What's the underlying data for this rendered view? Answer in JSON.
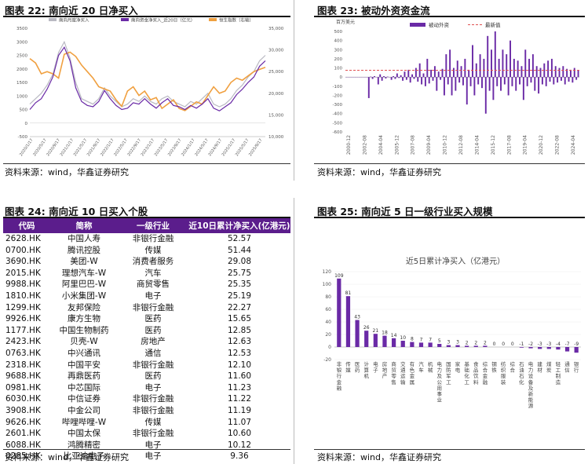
{
  "panels": {
    "p22": {
      "title": "图表 22: 南向近 20 日净买入",
      "source": "资料来源：wind，华鑫证券研究"
    },
    "p23": {
      "title": "图表 23: 被动外资资金流",
      "source": "资料来源：wind，华鑫证券研究"
    },
    "p24": {
      "title": "图表 24: 南向近 10 日买入个股",
      "source": "资料来源：wind，华鑫证券研究"
    },
    "p25": {
      "title": "图表 25: 南向近 5 日一级行业买入规模",
      "source": "资料来源：wind，华鑫证券研究"
    }
  },
  "colors": {
    "header_purple": "#5b1d8c",
    "series_gray": "#b9b9c2",
    "series_purple": "#6a2aa6",
    "series_orange": "#f0a040",
    "bar_purple": "#6a2aa6",
    "latest_red": "#e05050"
  },
  "chart_data": [
    {
      "id": "southbound_20d",
      "type": "line",
      "legend": [
        "南向月度净买入",
        "南向资金净买入_近20日（亿元）",
        "恒生指数（右轴）"
      ],
      "y_left": {
        "ylim": [
          -500,
          3500
        ],
        "ticks": [
          "3500",
          "3000",
          "2500",
          "2000",
          "1500",
          "1000",
          "500",
          "0",
          "-500"
        ]
      },
      "y_right": {
        "ylim": [
          10000,
          35000
        ],
        "ticks": [
          "35,000",
          "30,000",
          "25,000",
          "20,000",
          "15,000",
          "10,000"
        ]
      },
      "x_ticks": [
        "2020/1/17",
        "2020/5/17",
        "2020/9/17",
        "2021/1/17",
        "2021/5/17",
        "2021/9/17",
        "2022/1/17",
        "2022/5/17",
        "2022/9/17",
        "2023/1/17",
        "2023/5/17",
        "2023/9/17",
        "2024/1/17",
        "2024/5/17",
        "2024/9/17",
        "2025/1/17",
        "2025/5/17",
        "2025/9/17"
      ],
      "series": [
        {
          "name": "南向月度净买入",
          "values": [
            700,
            900,
            1100,
            1400,
            1800,
            2600,
            3000,
            2400,
            1500,
            900,
            800,
            700,
            900,
            1300,
            1000,
            800,
            600,
            700,
            900,
            800,
            1000,
            800,
            700,
            900,
            1000,
            800,
            700,
            600,
            800,
            700,
            900,
            1100,
            700,
            600,
            700,
            900,
            1200,
            1400,
            1700,
            1900,
            2300,
            2500
          ]
        },
        {
          "name": "南向资金净买入_近20日（亿元）",
          "values": [
            500,
            750,
            900,
            1250,
            1700,
            2500,
            2800,
            2300,
            1300,
            800,
            650,
            600,
            800,
            1200,
            900,
            650,
            500,
            550,
            750,
            700,
            900,
            700,
            550,
            750,
            900,
            650,
            600,
            500,
            650,
            550,
            700,
            900,
            550,
            450,
            600,
            750,
            1050,
            1250,
            1500,
            1700,
            2100,
            2300
          ]
        },
        {
          "name": "恒生指数（右轴）",
          "values": [
            28000,
            27000,
            24500,
            25000,
            24500,
            23500,
            29000,
            29500,
            28500,
            26500,
            25000,
            23500,
            21500,
            21000,
            20500,
            18500,
            17000,
            20500,
            21500,
            19500,
            20500,
            18500,
            19000,
            16500,
            17500,
            18500,
            16500,
            16000,
            17000,
            18000,
            17500,
            19500,
            21500,
            20000,
            20500,
            22500,
            23500,
            23000,
            24000,
            25000,
            25500,
            26000
          ]
        }
      ]
    },
    {
      "id": "passive_foreign_flow",
      "type": "bar",
      "unit": "百万美元",
      "legend": [
        "被动外资",
        "最新值"
      ],
      "ylim": [
        -600,
        500
      ],
      "y_ticks": [
        "500",
        "400",
        "300",
        "200",
        "100",
        "0",
        "-100",
        "-200",
        "-300",
        "-400",
        "-500",
        "-600"
      ],
      "x_ticks": [
        "2000-12",
        "2002-08",
        "2004-04",
        "2005-12",
        "2007-08",
        "2009-04",
        "2010-12",
        "2012-08",
        "2014-04",
        "2015-12",
        "2017-08",
        "2019-04",
        "2020-12",
        "2022-08",
        "2024-04"
      ],
      "latest_value": 75,
      "values": [
        0,
        0,
        0,
        0,
        0,
        0,
        0,
        0,
        0,
        0,
        0,
        0,
        -230,
        5,
        -20,
        10,
        0,
        -80,
        30,
        -40,
        10,
        -15,
        5,
        0,
        -30,
        10,
        -20,
        40,
        -10,
        20,
        -40,
        60,
        -30,
        80,
        -60,
        30,
        -20,
        100,
        -50,
        150,
        -80,
        40,
        -100,
        200,
        -70,
        80,
        -40,
        120,
        -150,
        60,
        -30,
        90,
        -200,
        250,
        -80,
        300,
        -200,
        100,
        -150,
        180,
        -60,
        120,
        -90,
        200,
        -300,
        80,
        -100,
        350,
        -200,
        150,
        -80,
        250,
        -120,
        200,
        -400,
        450,
        -150,
        300,
        -250,
        500,
        -100,
        200,
        -150,
        300,
        -80,
        250,
        -200,
        400,
        -100,
        200,
        -150,
        180,
        -80,
        120,
        -250,
        300,
        -100,
        200,
        -60,
        250,
        -150,
        120,
        -180,
        100,
        -80,
        150,
        -100,
        180,
        -50,
        200,
        -80,
        120,
        -60,
        100,
        -40,
        120,
        -80,
        90,
        -50,
        80,
        -60,
        100,
        -30,
        75
      ]
    },
    {
      "id": "industry_5d",
      "type": "bar",
      "title": "近5日累计净买入（亿港元）",
      "ylim": [
        -20,
        120
      ],
      "y_ticks": [
        "120",
        "100",
        "80",
        "60",
        "40",
        "20",
        "0",
        "-20"
      ],
      "categories": [
        "非银行金融",
        "传媒",
        "医药",
        "计算机",
        "电子",
        "房地产",
        "商贸零售",
        "交通运输",
        "有色金属",
        "汽车",
        "机械",
        "电力及公用事业",
        "国防军工",
        "家电",
        "基础化工",
        "食品饮料",
        "综合金融",
        "钢铁",
        "纺织服装",
        "综合",
        "石油石化",
        "电力设备及新能源",
        "建材",
        "煤炭",
        "轻工制造",
        "通信",
        "银行"
      ],
      "values": [
        109,
        81,
        43,
        26,
        21,
        18,
        14,
        10,
        8,
        7,
        7,
        5,
        3,
        3,
        2,
        2,
        2,
        0,
        0,
        0,
        -1,
        -2,
        -3,
        -3,
        -4,
        -7,
        -9
      ]
    }
  ],
  "stock_table": {
    "headers": [
      "代码",
      "简称",
      "一级行业",
      "近10日累计净买入(亿港元)"
    ],
    "rows": [
      [
        "2628.HK",
        "中国人寿",
        "非银行金融",
        "52.57"
      ],
      [
        "0700.HK",
        "腾讯控股",
        "传媒",
        "51.44"
      ],
      [
        "3690.HK",
        "美团-W",
        "消费者服务",
        "29.08"
      ],
      [
        "2015.HK",
        "理想汽车-W",
        "汽车",
        "25.75"
      ],
      [
        "9988.HK",
        "阿里巴巴-W",
        "商贸零售",
        "25.35"
      ],
      [
        "1810.HK",
        "小米集团-W",
        "电子",
        "25.19"
      ],
      [
        "1299.HK",
        "友邦保险",
        "非银行金融",
        "22.27"
      ],
      [
        "9926.HK",
        "康方生物",
        "医药",
        "15.65"
      ],
      [
        "1177.HK",
        "中国生物制药",
        "医药",
        "12.85"
      ],
      [
        "2423.HK",
        "贝壳-W",
        "房地产",
        "12.63"
      ],
      [
        "0763.HK",
        "中兴通讯",
        "通信",
        "12.53"
      ],
      [
        "2318.HK",
        "中国平安",
        "非银行金融",
        "12.10"
      ],
      [
        "9688.HK",
        "再鼎医药",
        "医药",
        "11.60"
      ],
      [
        "0981.HK",
        "中芯国际",
        "电子",
        "11.23"
      ],
      [
        "6030.HK",
        "中信证券",
        "非银行金融",
        "11.22"
      ],
      [
        "3908.HK",
        "中金公司",
        "非银行金融",
        "11.19"
      ],
      [
        "9626.HK",
        "哔哩哔哩-W",
        "传媒",
        "11.07"
      ],
      [
        "2601.HK",
        "中国太保",
        "非银行金融",
        "10.60"
      ],
      [
        "6088.HK",
        "鸿腾精密",
        "电子",
        "10.12"
      ],
      [
        "0285.HK",
        "比亚迪电子",
        "电子",
        "9.36"
      ]
    ]
  }
}
